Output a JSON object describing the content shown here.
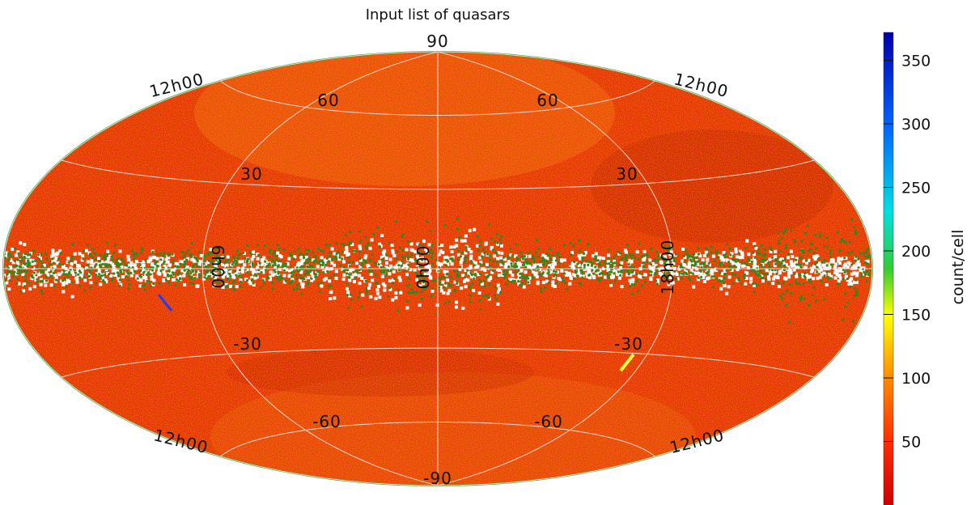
{
  "chart_data": {
    "type": "heatmap",
    "projection": "Hammer-Aitoff all-sky (galactic frame)",
    "title": "Input list of quasars",
    "colorbar": {
      "label": "count/cell",
      "range": [
        0,
        372
      ],
      "ticks": [
        50,
        100,
        150,
        200,
        250,
        300,
        350
      ],
      "tick_labels": [
        "50",
        "100",
        "150",
        "200",
        "250",
        "300",
        "350"
      ],
      "colormap": [
        "#cc0000",
        "#ff2a00",
        "#ff8c00",
        "#ffff00",
        "#33cc33",
        "#00e0e0",
        "#0066ff",
        "#0000aa"
      ]
    },
    "grid": true,
    "latitude_labels": {
      "top": "90",
      "upper_60": [
        "60",
        "60"
      ],
      "upper_30": [
        "30",
        "30"
      ],
      "lower_30": [
        "-30",
        "-30"
      ],
      "lower_60": [
        "-60",
        "-60"
      ],
      "bottom": "-90"
    },
    "longitude_labels": {
      "edge": [
        "12h00",
        "12h00",
        "12h00",
        "12h00"
      ],
      "equator": [
        "6h00",
        "0h00",
        "18h00"
      ]
    },
    "colors": {
      "background_field": "#e8280f",
      "galactic_plane_gaps": "#ffffff",
      "plane_points": "#2b8a1e",
      "grid_lines": "#f4d8d0"
    }
  }
}
